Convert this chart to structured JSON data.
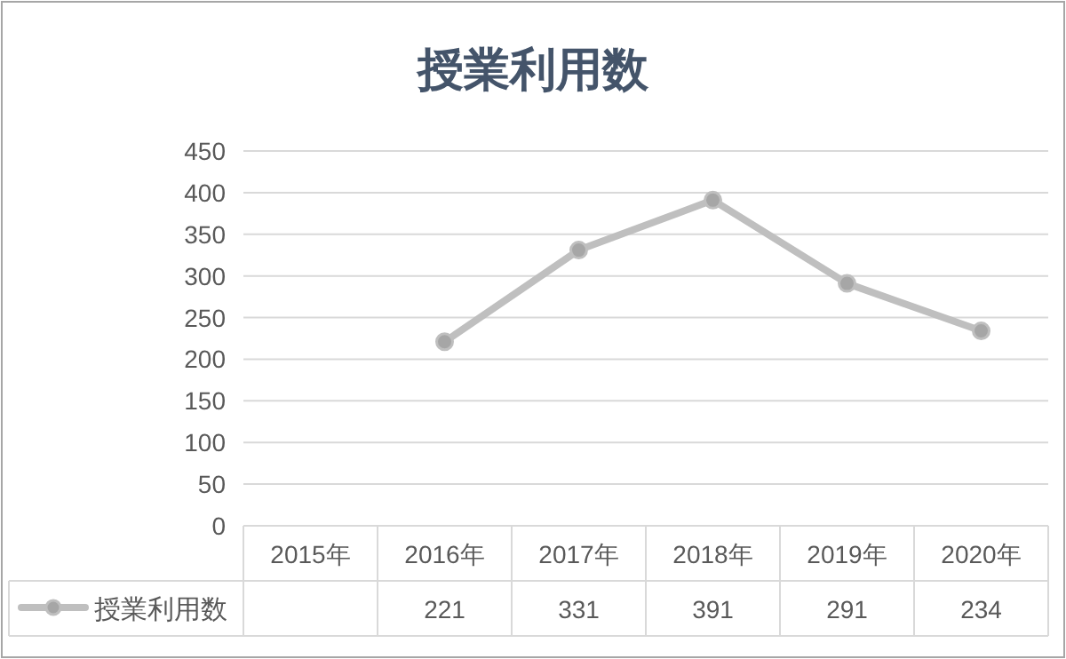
{
  "chart_data": {
    "type": "line",
    "title": "授業利用数",
    "categories": [
      "2015年",
      "2016年",
      "2017年",
      "2018年",
      "2019年",
      "2020年"
    ],
    "series": [
      {
        "name": "授業利用数",
        "color": "#bfbfbf",
        "values": [
          null,
          221,
          331,
          391,
          291,
          234
        ]
      }
    ],
    "ylim": [
      0,
      450
    ],
    "yticks": [
      0,
      50,
      100,
      150,
      200,
      250,
      300,
      350,
      400,
      450
    ],
    "grid": "y",
    "data_labels": true,
    "marker": "circle",
    "legend": "bottom",
    "line_style": "solid"
  }
}
